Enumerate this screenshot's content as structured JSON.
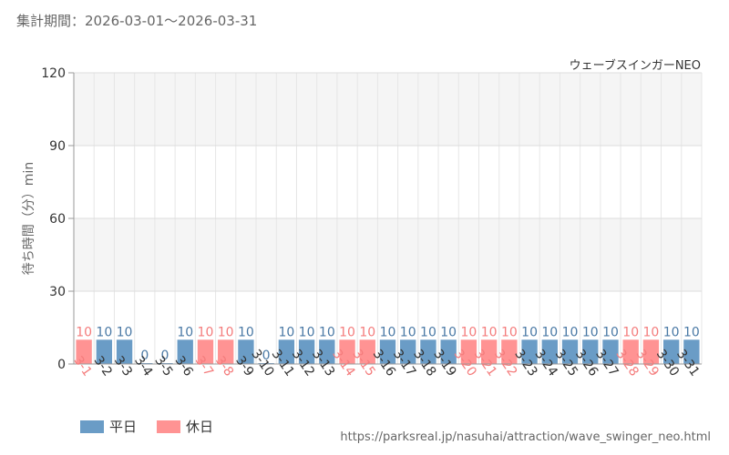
{
  "header": {
    "period": "集計期間：2026-03-01～2026-03-31",
    "attraction": "ウェーブスインガーNEO"
  },
  "chart_data": {
    "type": "bar",
    "title": "",
    "ylabel": "待ち時間（分）min",
    "xlabel": "",
    "ylim": [
      0,
      120
    ],
    "yticks": [
      0,
      30,
      60,
      90,
      120
    ],
    "categories": [
      "3-1",
      "3-2",
      "3-3",
      "3-4",
      "3-5",
      "3-6",
      "3-7",
      "3-8",
      "3-9",
      "3-10",
      "3-11",
      "3-12",
      "3-13",
      "3-14",
      "3-15",
      "3-16",
      "3-17",
      "3-18",
      "3-19",
      "3-20",
      "3-21",
      "3-22",
      "3-23",
      "3-24",
      "3-25",
      "3-26",
      "3-27",
      "3-28",
      "3-29",
      "3-30",
      "3-31"
    ],
    "values": [
      10,
      10,
      10,
      0,
      0,
      10,
      10,
      10,
      10,
      0,
      10,
      10,
      10,
      10,
      10,
      10,
      10,
      10,
      10,
      10,
      10,
      10,
      10,
      10,
      10,
      10,
      10,
      10,
      10,
      10,
      10
    ],
    "day_type": [
      "holiday",
      "weekday",
      "weekday",
      "weekday",
      "weekday",
      "weekday",
      "holiday",
      "holiday",
      "weekday",
      "weekday",
      "weekday",
      "weekday",
      "weekday",
      "holiday",
      "holiday",
      "weekday",
      "weekday",
      "weekday",
      "weekday",
      "holiday",
      "holiday",
      "holiday",
      "weekday",
      "weekday",
      "weekday",
      "weekday",
      "weekday",
      "holiday",
      "holiday",
      "weekday",
      "weekday"
    ],
    "series": [
      {
        "name": "平日",
        "color": "#6a9cc6"
      },
      {
        "name": "休日",
        "color": "#ff9393"
      }
    ],
    "label_colors": {
      "weekday": "#4a79a5",
      "holiday": "#f47c7c"
    },
    "grid": true,
    "legend_position": "bottom-left"
  },
  "legend": {
    "weekday_label": "平日",
    "holiday_label": "休日"
  },
  "source": "https://parksreal.jp/nasuhai/attraction/wave_swinger_neo.html"
}
